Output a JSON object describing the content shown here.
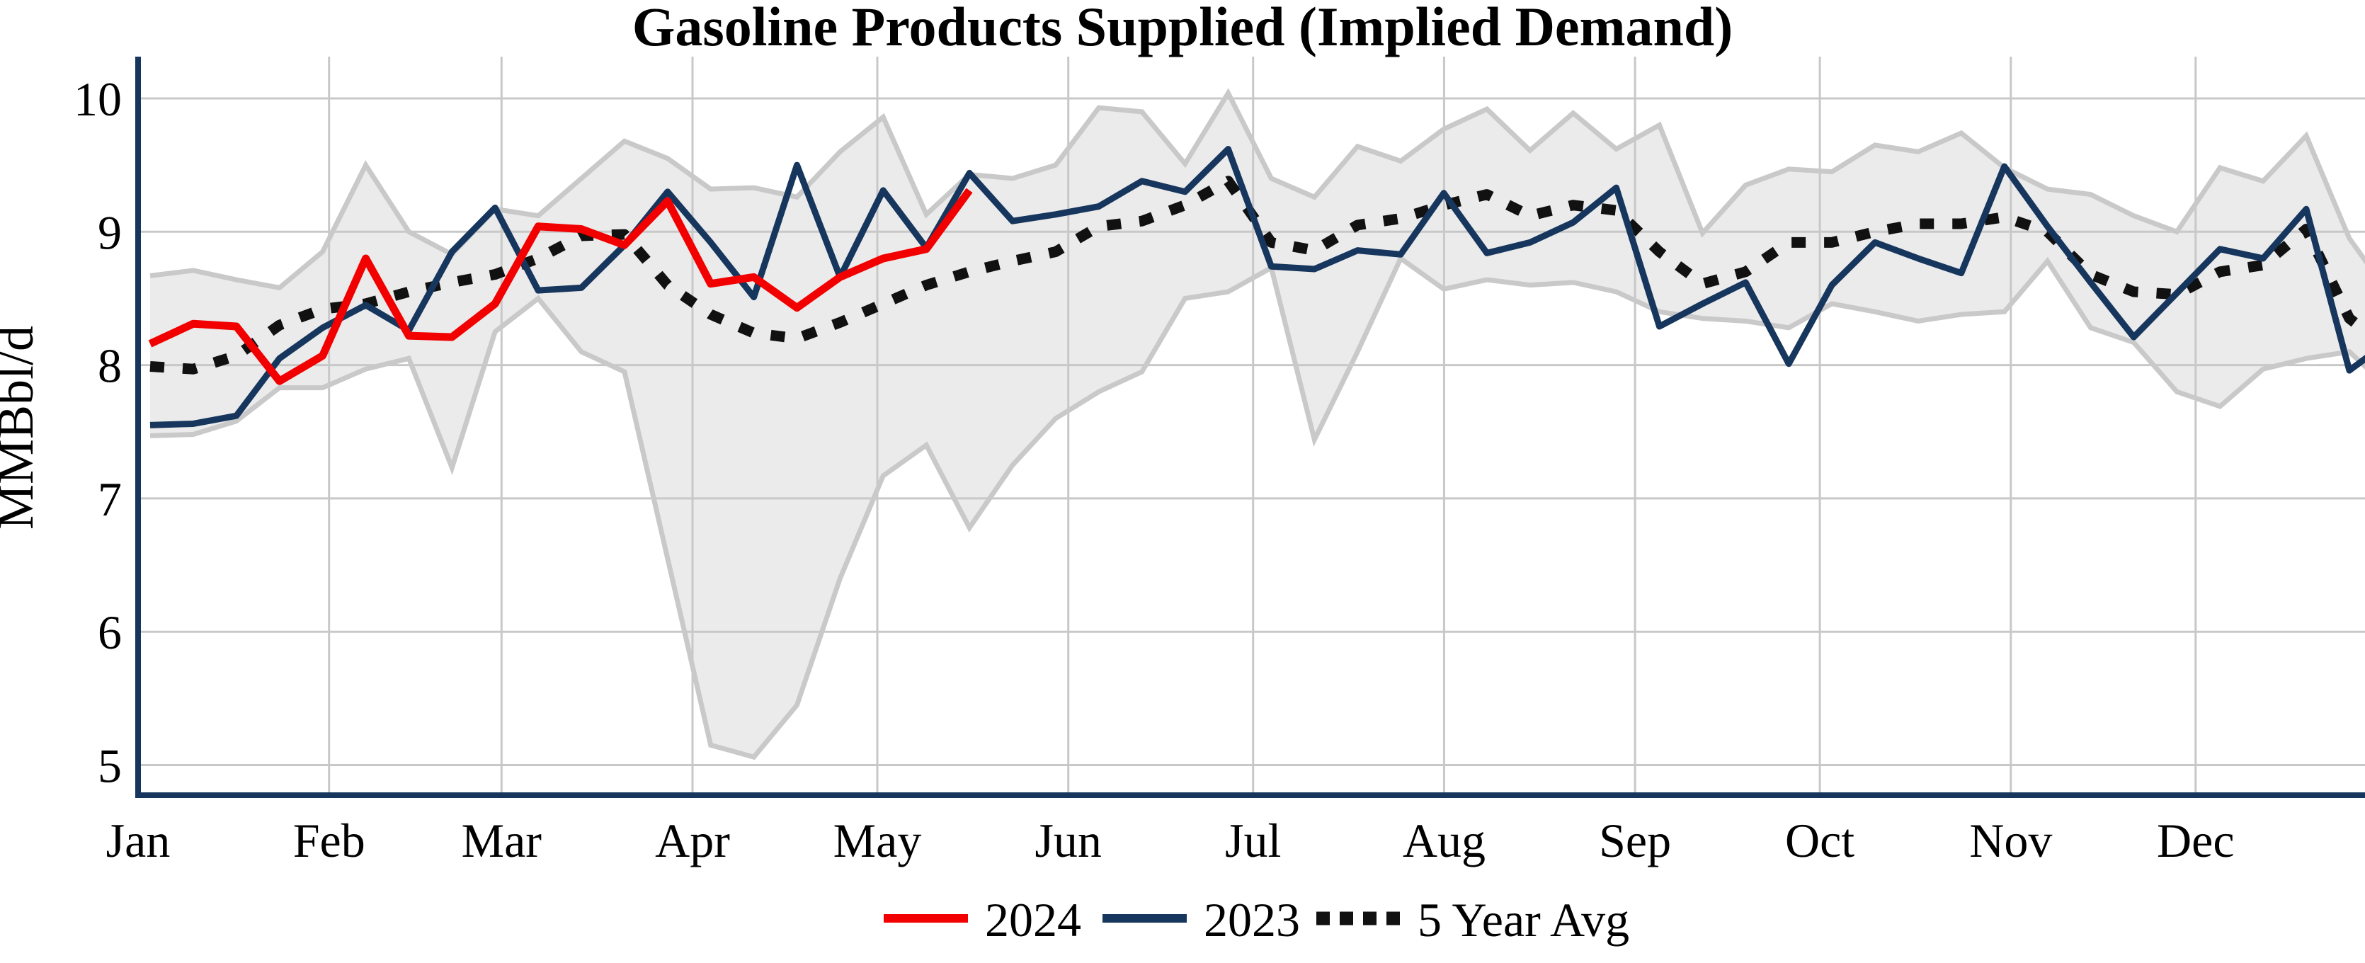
{
  "chart_data": {
    "type": "line",
    "title": "Gasoline Products Supplied (Implied Demand)",
    "ylabel": "MMBbl/d",
    "xlabel": "",
    "ylim": [
      4.78,
      10.32
    ],
    "y_ticks": [
      {
        "label": "10",
        "value": 10
      },
      {
        "label": "9",
        "value": 9
      },
      {
        "label": "8",
        "value": 8
      },
      {
        "label": "7",
        "value": 7
      },
      {
        "label": "6",
        "value": 6
      },
      {
        "label": "5",
        "value": 5
      }
    ],
    "x_ticks": [
      {
        "label": "Jan",
        "day": 0
      },
      {
        "label": "Feb",
        "day": 31
      },
      {
        "label": "Mar",
        "day": 59
      },
      {
        "label": "Apr",
        "day": 90
      },
      {
        "label": "May",
        "day": 120
      },
      {
        "label": "Jun",
        "day": 151
      },
      {
        "label": "Jul",
        "day": 181
      },
      {
        "label": "Aug",
        "day": 212
      },
      {
        "label": "Sep",
        "day": 243
      },
      {
        "label": "Oct",
        "day": 273
      },
      {
        "label": "Nov",
        "day": 304
      },
      {
        "label": "Dec",
        "day": 334
      }
    ],
    "grid": true,
    "legend_position": "bottom-center",
    "x_unit": "weekly points, calendar year Jan-Dec",
    "band": {
      "name": "5 Year Range",
      "fill_color": "#ebebeb",
      "edge_color": "#c9c9c9",
      "min": [
        7.47,
        7.48,
        7.58,
        7.83,
        7.83,
        7.97,
        8.05,
        7.23,
        8.25,
        8.5,
        8.1,
        7.95,
        6.55,
        5.15,
        5.06,
        5.45,
        6.4,
        7.17,
        7.4,
        6.78,
        7.25,
        7.6,
        7.8,
        7.95,
        8.5,
        8.55,
        8.73,
        7.44,
        8.1,
        8.8,
        8.57,
        8.64,
        8.6,
        8.62,
        8.55,
        8.4,
        8.35,
        8.33,
        8.28,
        8.46,
        8.4,
        8.33,
        8.38,
        8.4,
        8.78,
        8.28,
        8.17,
        7.8,
        7.69,
        7.97,
        8.05,
        8.1,
        7.8
      ],
      "max": [
        8.67,
        8.71,
        8.64,
        8.58,
        8.85,
        9.5,
        9.0,
        8.83,
        9.17,
        9.12,
        9.4,
        9.68,
        9.55,
        9.32,
        9.33,
        9.26,
        9.6,
        9.86,
        9.13,
        9.43,
        9.4,
        9.5,
        9.93,
        9.9,
        9.51,
        10.04,
        9.4,
        9.26,
        9.64,
        9.53,
        9.77,
        9.92,
        9.61,
        9.89,
        9.62,
        9.8,
        8.99,
        9.35,
        9.47,
        9.45,
        9.65,
        9.6,
        9.74,
        9.48,
        9.32,
        9.28,
        9.12,
        9.0,
        9.48,
        9.38,
        9.72,
        8.95,
        8.5
      ]
    },
    "series": [
      {
        "name": "2024",
        "color": "#f20000",
        "style": "solid",
        "values": [
          8.16,
          8.31,
          8.29,
          7.88,
          8.07,
          8.8,
          8.22,
          8.21,
          8.46,
          9.04,
          9.02,
          8.9,
          9.23,
          8.61,
          8.66,
          8.43,
          8.66,
          8.8,
          8.87,
          9.31
        ]
      },
      {
        "name": "2023",
        "color": "#17365d",
        "style": "solid",
        "values": [
          7.55,
          7.56,
          7.62,
          8.05,
          8.28,
          8.45,
          8.26,
          8.85,
          9.18,
          8.56,
          8.58,
          8.9,
          9.3,
          8.92,
          8.51,
          9.5,
          8.66,
          9.31,
          8.88,
          9.44,
          9.08,
          9.13,
          9.19,
          9.38,
          9.3,
          9.62,
          8.74,
          8.72,
          8.86,
          8.83,
          9.29,
          8.84,
          8.92,
          9.07,
          9.33,
          8.29,
          8.46,
          8.62,
          8.01,
          8.6,
          8.92,
          8.8,
          8.69,
          9.49,
          9.04,
          8.62,
          8.21,
          8.54,
          8.87,
          8.8,
          9.17,
          7.96,
          8.2
        ]
      },
      {
        "name": "5 Year Avg",
        "color": "#111111",
        "style": "dotted",
        "values": [
          7.99,
          7.97,
          8.07,
          8.3,
          8.42,
          8.46,
          8.55,
          8.62,
          8.68,
          8.8,
          8.97,
          8.98,
          8.6,
          8.38,
          8.24,
          8.2,
          8.32,
          8.46,
          8.6,
          8.7,
          8.78,
          8.85,
          9.04,
          9.08,
          9.2,
          9.38,
          8.92,
          8.86,
          9.05,
          9.1,
          9.2,
          9.28,
          9.12,
          9.2,
          9.16,
          8.85,
          8.61,
          8.7,
          8.92,
          8.92,
          9.0,
          9.06,
          9.06,
          9.11,
          9.0,
          8.68,
          8.55,
          8.53,
          8.7,
          8.75,
          9.02,
          8.35,
          8.1
        ]
      }
    ],
    "legend": [
      {
        "label": "2024",
        "color": "#f20000",
        "style": "solid"
      },
      {
        "label": "2023",
        "color": "#17365d",
        "style": "solid"
      },
      {
        "label": "5 Year Avg",
        "color": "#111111",
        "style": "dotted"
      }
    ]
  },
  "colors": {
    "axis_spine": "#17365d",
    "gridline": "#c8c8c8",
    "background": "#ffffff",
    "text": "#000000"
  }
}
